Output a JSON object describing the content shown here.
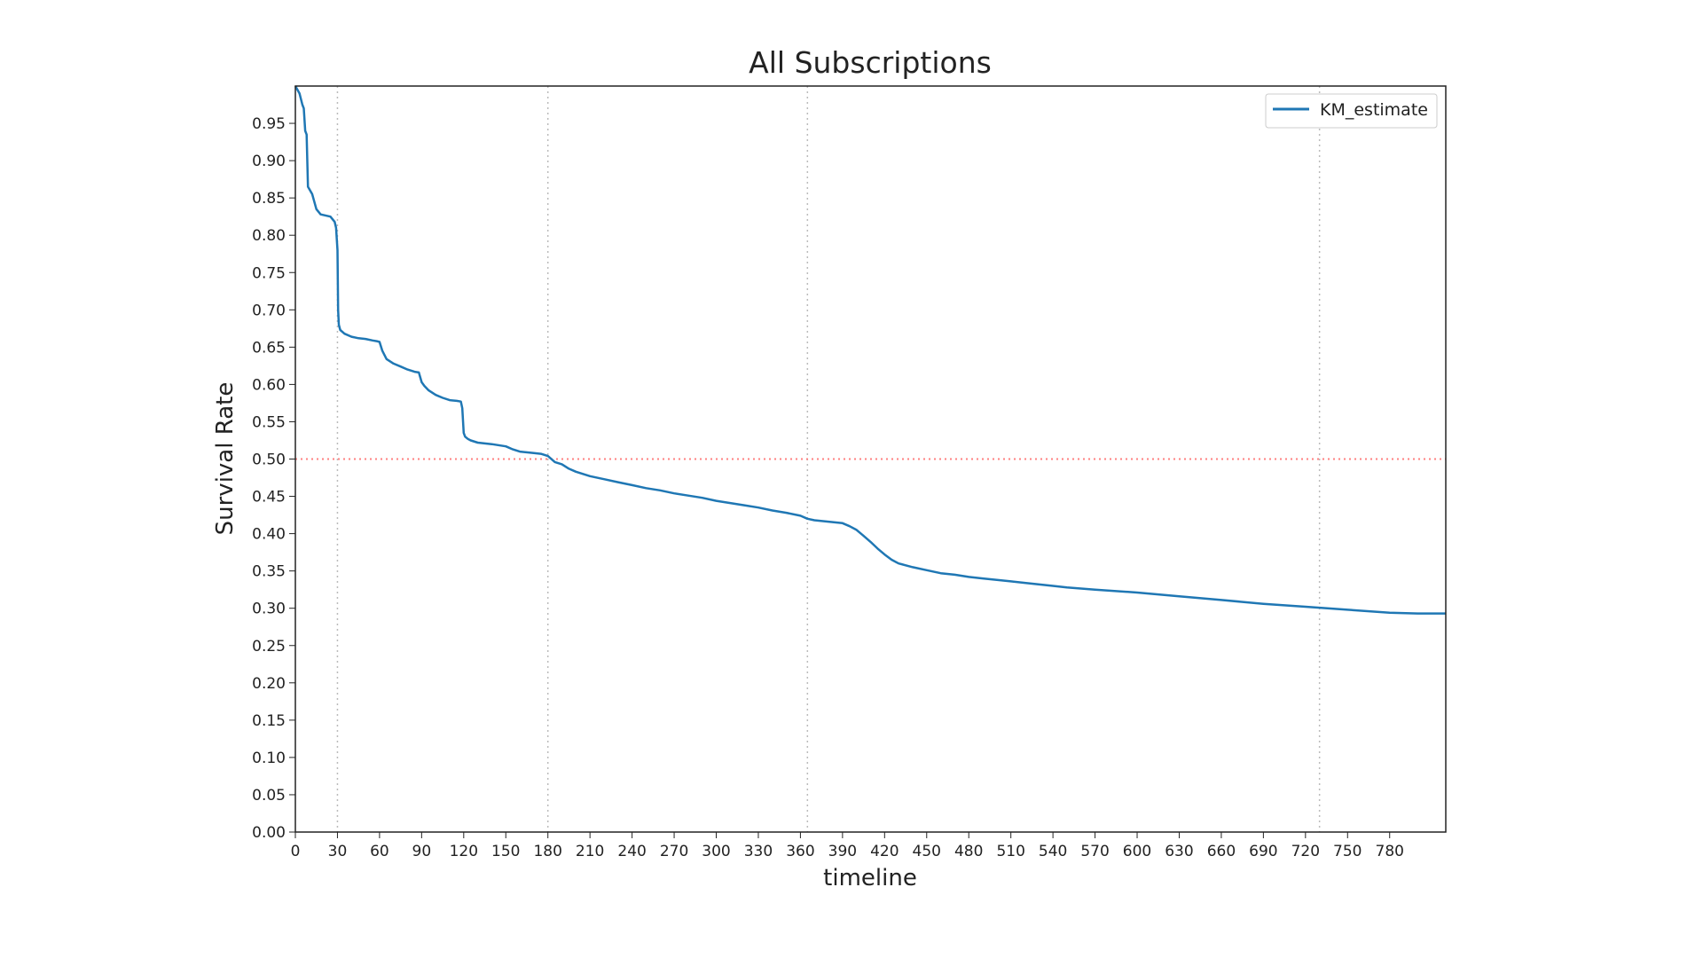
{
  "chart_data": {
    "type": "line",
    "title": "All Subscriptions",
    "xlabel": "timeline",
    "ylabel": "Survival Rate",
    "xlim": [
      0,
      820
    ],
    "ylim": [
      0,
      1.0
    ],
    "x_ticks": [
      0,
      30,
      60,
      90,
      120,
      150,
      180,
      210,
      240,
      270,
      300,
      330,
      360,
      390,
      420,
      450,
      480,
      510,
      540,
      570,
      600,
      630,
      660,
      690,
      720,
      750,
      780
    ],
    "x_tick_labels": [
      "0",
      "30",
      "60",
      "90",
      "120",
      "150",
      "180",
      "210",
      "240",
      "270",
      "300",
      "330",
      "360",
      "390",
      "420",
      "450",
      "480",
      "510",
      "540",
      "570",
      "600",
      "630",
      "660",
      "690",
      "720",
      "750",
      "780"
    ],
    "y_ticks": [
      0,
      0.05,
      0.1,
      0.15,
      0.2,
      0.25,
      0.3,
      0.35,
      0.4,
      0.45,
      0.5,
      0.55,
      0.6,
      0.65,
      0.7,
      0.75,
      0.8,
      0.85,
      0.9,
      0.95
    ],
    "y_tick_labels": [
      "0.00",
      "0.05",
      "0.10",
      "0.15",
      "0.20",
      "0.25",
      "0.30",
      "0.35",
      "0.40",
      "0.45",
      "0.50",
      "0.55",
      "0.60",
      "0.65",
      "0.70",
      "0.75",
      "0.80",
      "0.85",
      "0.90",
      "0.95"
    ],
    "legend": {
      "placement": "top-right",
      "entries": [
        "KM_estimate"
      ]
    },
    "reference_lines": {
      "vertical_x": [
        30,
        180,
        365,
        730
      ],
      "horizontal_y": [
        0.5
      ]
    },
    "colors": {
      "series": "#1f77b4",
      "median_line": "#ff7f7f",
      "vline": "#bbbbbb"
    },
    "series": [
      {
        "name": "KM_estimate",
        "x": [
          0,
          3,
          5,
          6,
          7,
          8,
          9,
          12,
          15,
          18,
          25,
          28,
          29,
          30,
          30.5,
          31,
          32,
          35,
          40,
          45,
          50,
          55,
          58,
          60,
          62,
          65,
          70,
          75,
          80,
          85,
          88,
          90,
          92,
          95,
          100,
          105,
          110,
          115,
          118,
          119,
          120,
          121,
          123,
          125,
          130,
          140,
          150,
          155,
          160,
          170,
          175,
          180,
          185,
          190,
          195,
          200,
          210,
          220,
          230,
          240,
          250,
          260,
          270,
          280,
          290,
          300,
          310,
          320,
          330,
          340,
          350,
          360,
          365,
          370,
          380,
          390,
          395,
          400,
          405,
          410,
          415,
          420,
          425,
          430,
          440,
          450,
          460,
          470,
          480,
          490,
          500,
          510,
          520,
          540,
          550,
          570,
          600,
          630,
          660,
          690,
          720,
          750,
          780,
          800,
          820
        ],
        "y": [
          1.0,
          0.99,
          0.975,
          0.97,
          0.94,
          0.935,
          0.865,
          0.855,
          0.835,
          0.828,
          0.825,
          0.818,
          0.81,
          0.78,
          0.7,
          0.68,
          0.673,
          0.668,
          0.664,
          0.662,
          0.661,
          0.659,
          0.658,
          0.657,
          0.645,
          0.634,
          0.628,
          0.624,
          0.62,
          0.617,
          0.616,
          0.603,
          0.598,
          0.592,
          0.586,
          0.582,
          0.579,
          0.578,
          0.577,
          0.568,
          0.535,
          0.53,
          0.527,
          0.525,
          0.522,
          0.52,
          0.517,
          0.513,
          0.51,
          0.508,
          0.507,
          0.504,
          0.496,
          0.493,
          0.487,
          0.483,
          0.477,
          0.473,
          0.469,
          0.465,
          0.461,
          0.458,
          0.454,
          0.451,
          0.448,
          0.444,
          0.441,
          0.438,
          0.435,
          0.431,
          0.428,
          0.424,
          0.42,
          0.418,
          0.416,
          0.414,
          0.41,
          0.405,
          0.397,
          0.389,
          0.38,
          0.372,
          0.365,
          0.36,
          0.355,
          0.351,
          0.347,
          0.345,
          0.342,
          0.34,
          0.338,
          0.336,
          0.334,
          0.33,
          0.328,
          0.325,
          0.321,
          0.316,
          0.311,
          0.306,
          0.302,
          0.298,
          0.294,
          0.293,
          0.293
        ]
      }
    ]
  }
}
